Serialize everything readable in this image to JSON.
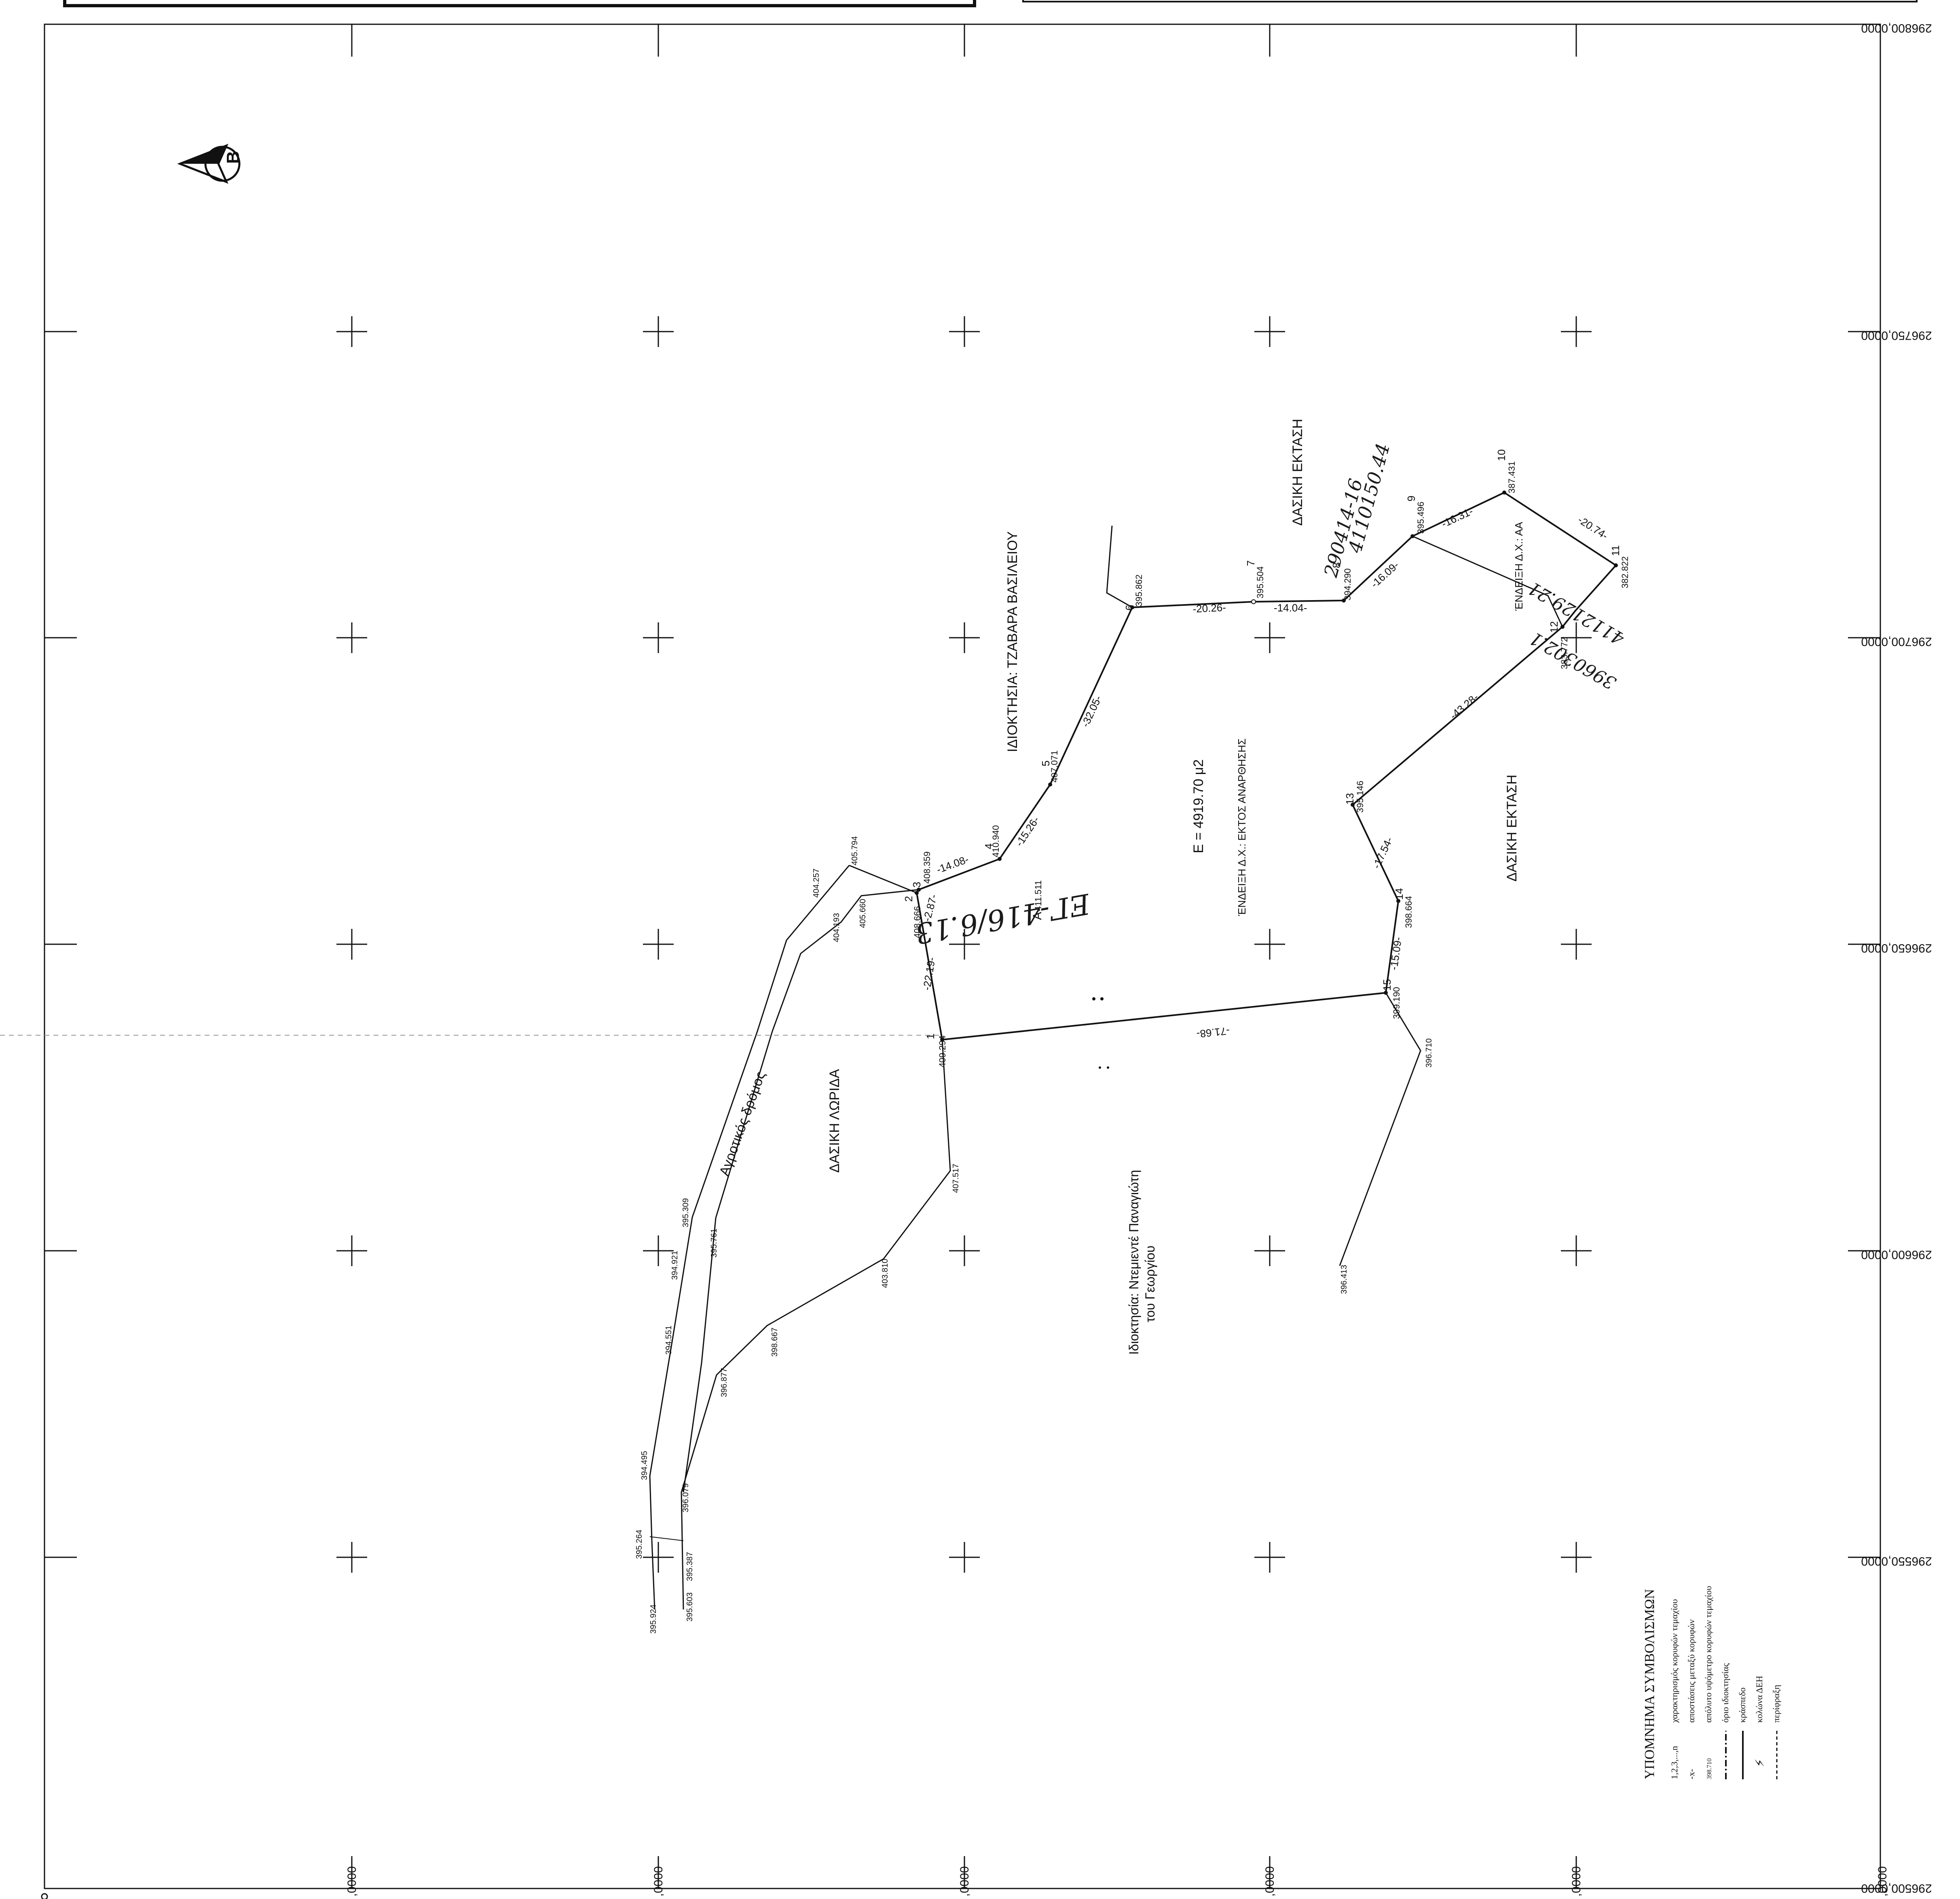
{
  "grid": {
    "northing_labels": [
      "296800,0000",
      "296750,0000",
      "296700,0000",
      "296650,0000",
      "296600,0000",
      "296550,0000",
      "296500,0000"
    ],
    "easting_labels": [
      ",0000",
      ",0000",
      ",0000",
      ",0000",
      ",0000",
      ",0000"
    ]
  },
  "north_arrow": {
    "letter": "B"
  },
  "regions": {
    "owner_north": "ΙΔΙΟΚΤΗΣΙΑ: ΤΖΑΒΑΡΑ ΒΑΣΙΛΕΙΟΥ",
    "forest_top": "ΔΑΣΙΚΗ ΕΚΤΑΣΗ",
    "forest_right": "ΔΑΣΙΚΗ ΕΚΤΑΣΗ",
    "forest_strip": "ΔΑΣΙΚΗ ΛΩΡΙΔΑ",
    "rural_road": "Αγροτικός δρόμος",
    "area": "Ε = 4919.70 μ2",
    "indication_main": "ΈΝΔΕΙΞΗ Δ.Χ.: ΕΚΤΟΣ ΑΝΑΡΘΗΣΗΣ",
    "indication_aa": "ΈΝΔΕΙΞΗ Δ.Χ.: ΑΑ",
    "owner_south_line1": "Ιδιοκτησία: Ντεμιεντέ Παναγιώτη",
    "owner_south_line2": "του Γεωργίου"
  },
  "vertices": [
    {
      "id": "1",
      "elev": "409.294"
    },
    {
      "id": "2",
      "elev": "408.666"
    },
    {
      "id": "3",
      "elev": "408.359"
    },
    {
      "id": "4",
      "elev": "410.940"
    },
    {
      "id": "5",
      "elev": "407.071"
    },
    {
      "id": "6",
      "elev": "395.862"
    },
    {
      "id": "7",
      "elev": "395.504"
    },
    {
      "id": "8",
      "elev": "394.290"
    },
    {
      "id": "9",
      "elev": "395.496"
    },
    {
      "id": "10",
      "elev": "387.431"
    },
    {
      "id": "11",
      "elev": "382.822"
    },
    {
      "id": "12",
      "elev": "383.772"
    },
    {
      "id": "13",
      "elev": "395.146"
    },
    {
      "id": "14",
      "elev": "398.664"
    },
    {
      "id": "15",
      "elev": "399.190"
    }
  ],
  "inner_point": {
    "id": "A",
    "elev": "411.511"
  },
  "distances": [
    "-2.87-",
    "-14.08-",
    "-15.26-",
    "-32.05-",
    "-20.26-",
    "-14.04-",
    "-16.09-",
    "-16.31-",
    "-20.74-",
    "-43.28-",
    "-17.54-",
    "-15.09-",
    "-71.68-",
    "-22.19-"
  ],
  "spot_elevations": [
    "405.794",
    "404.257",
    "404.193",
    "405.660",
    "396.710",
    "396.413",
    "407.517",
    "403.810",
    "398.667",
    "396.877",
    "396.079",
    "395.264",
    "395.924",
    "395.603",
    "395.387",
    "394.495",
    "394.551",
    "394.921",
    "395.309",
    "395.761"
  ],
  "handwriting": {
    "parcel": "ΕΓ-416/6.13",
    "top_line1": "290414-16",
    "top_line2": "4110150.44",
    "right_line1": "3960302.1",
    "right_line2": "4112129.21"
  },
  "legend": {
    "title": "ΥΠΟΜΝΗΜΑ ΣΥΜΒΟΛΙΣΜΩΝ",
    "items": [
      {
        "symbol": "1,2,3,...,n",
        "label": "χαρακτηρισμός κορυφών τεμαχίου"
      },
      {
        "symbol": "-x-",
        "label": "αποστάσεις μεταξύ κορυφών"
      },
      {
        "symbol": "398.710",
        "label": "απόλυτο υψόμετρο κορυφών τεμαχίου"
      },
      {
        "symbol": "",
        "label": "όριο ιδιοκτησίας"
      },
      {
        "symbol": "",
        "label": "κράσπεδο"
      },
      {
        "symbol": "",
        "label": "κολώνα ΔΕΗ"
      },
      {
        "symbol": "",
        "label": "περίφραξη"
      }
    ]
  }
}
